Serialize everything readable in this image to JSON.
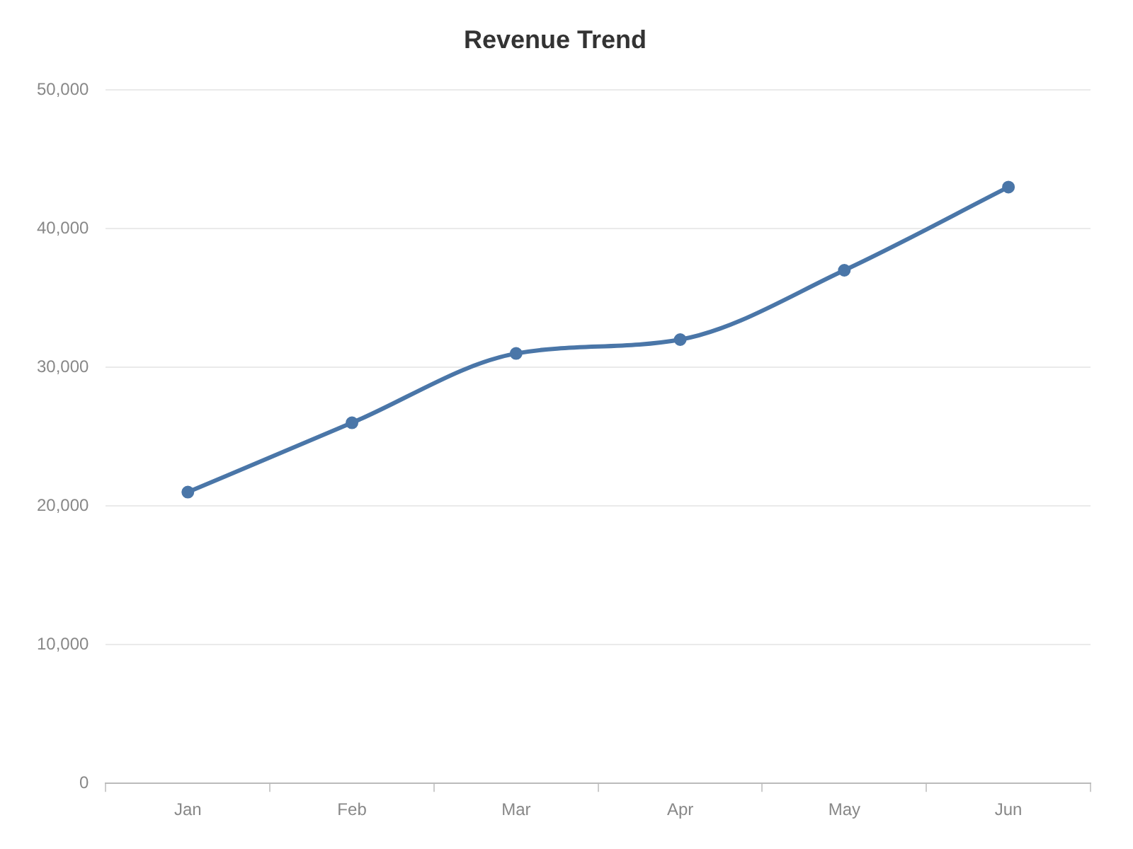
{
  "chart_data": {
    "type": "line",
    "title": "Revenue Trend",
    "categories": [
      "Jan",
      "Feb",
      "Mar",
      "Apr",
      "May",
      "Jun"
    ],
    "series": [
      {
        "color": "#4a76a8",
        "values": [
          21000,
          26000,
          31000,
          32000,
          37000,
          43000
        ]
      }
    ],
    "ylim": [
      0,
      50000
    ],
    "yticks": [
      0,
      {
        "value": 10000,
        "label": "10,000"
      },
      {
        "value": 20000,
        "label": "20,000"
      },
      {
        "value": 30000,
        "label": "30,000"
      },
      {
        "value": 40000,
        "label": "40,000"
      },
      {
        "value": 50000,
        "label": "50,000"
      }
    ],
    "grid": "y",
    "legend": false,
    "marker": "circle",
    "line_style": "solid"
  }
}
